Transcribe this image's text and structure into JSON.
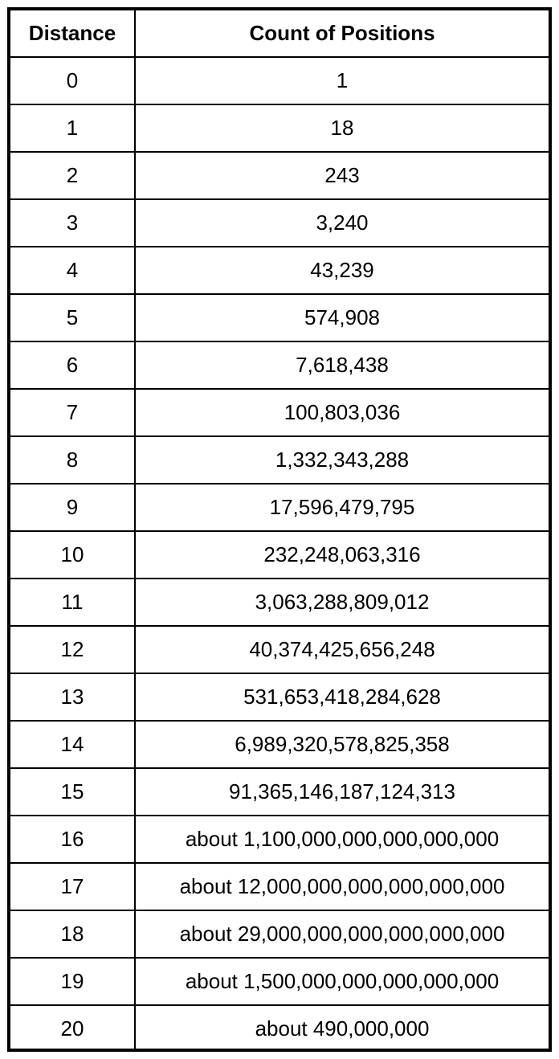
{
  "table": {
    "headers": [
      "Distance",
      "Count of Positions"
    ],
    "rows": [
      [
        "0",
        "1"
      ],
      [
        "1",
        "18"
      ],
      [
        "2",
        "243"
      ],
      [
        "3",
        "3,240"
      ],
      [
        "4",
        "43,239"
      ],
      [
        "5",
        "574,908"
      ],
      [
        "6",
        "7,618,438"
      ],
      [
        "7",
        "100,803,036"
      ],
      [
        "8",
        "1,332,343,288"
      ],
      [
        "9",
        "17,596,479,795"
      ],
      [
        "10",
        "232,248,063,316"
      ],
      [
        "11",
        "3,063,288,809,012"
      ],
      [
        "12",
        "40,374,425,656,248"
      ],
      [
        "13",
        "531,653,418,284,628"
      ],
      [
        "14",
        "6,989,320,578,825,358"
      ],
      [
        "15",
        "91,365,146,187,124,313"
      ],
      [
        "16",
        "about 1,100,000,000,000,000,000"
      ],
      [
        "17",
        "about 12,000,000,000,000,000,000"
      ],
      [
        "18",
        "about 29,000,000,000,000,000,000"
      ],
      [
        "19",
        "about 1,500,000,000,000,000,000"
      ],
      [
        "20",
        "about 490,000,000"
      ]
    ]
  }
}
